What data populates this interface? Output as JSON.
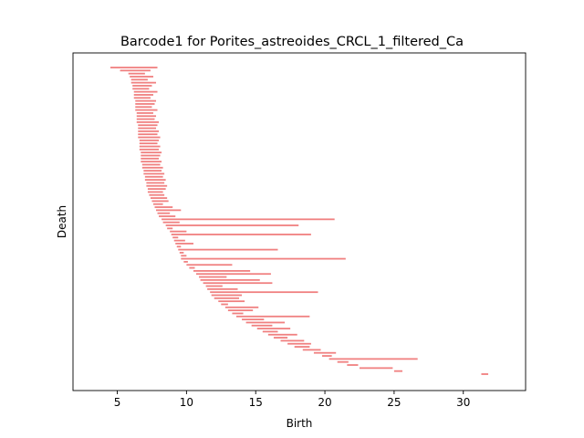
{
  "chart_data": {
    "type": "barcode",
    "title": "Barcode1 for Porites_astreoides_CRCL_1_filtered_Ca",
    "xlabel": "Birth",
    "ylabel": "Death",
    "xlim": [
      1.8,
      34.5
    ],
    "xticks": [
      5,
      10,
      15,
      20,
      25,
      30
    ],
    "yticks": [],
    "grid": false,
    "bar_color": "#f08080",
    "bars": [
      {
        "birth": 4.5,
        "death": 7.9
      },
      {
        "birth": 5.2,
        "death": 7.4
      },
      {
        "birth": 5.8,
        "death": 7.0
      },
      {
        "birth": 5.9,
        "death": 7.6
      },
      {
        "birth": 6.0,
        "death": 7.2
      },
      {
        "birth": 6.0,
        "death": 7.8
      },
      {
        "birth": 6.1,
        "death": 7.5
      },
      {
        "birth": 6.1,
        "death": 7.3
      },
      {
        "birth": 6.2,
        "death": 7.9
      },
      {
        "birth": 6.2,
        "death": 7.6
      },
      {
        "birth": 6.2,
        "death": 7.4
      },
      {
        "birth": 6.3,
        "death": 7.8
      },
      {
        "birth": 6.3,
        "death": 7.7
      },
      {
        "birth": 6.3,
        "death": 7.5
      },
      {
        "birth": 6.3,
        "death": 7.9
      },
      {
        "birth": 6.4,
        "death": 7.6
      },
      {
        "birth": 6.4,
        "death": 7.8
      },
      {
        "birth": 6.4,
        "death": 7.7
      },
      {
        "birth": 6.4,
        "death": 8.0
      },
      {
        "birth": 6.5,
        "death": 7.9
      },
      {
        "birth": 6.5,
        "death": 7.8
      },
      {
        "birth": 6.5,
        "death": 8.0
      },
      {
        "birth": 6.5,
        "death": 7.9
      },
      {
        "birth": 6.5,
        "death": 8.1
      },
      {
        "birth": 6.6,
        "death": 8.0
      },
      {
        "birth": 6.6,
        "death": 7.9
      },
      {
        "birth": 6.6,
        "death": 8.1
      },
      {
        "birth": 6.6,
        "death": 8.0
      },
      {
        "birth": 6.7,
        "death": 8.2
      },
      {
        "birth": 6.7,
        "death": 8.1
      },
      {
        "birth": 6.7,
        "death": 8.0
      },
      {
        "birth": 6.7,
        "death": 8.2
      },
      {
        "birth": 6.8,
        "death": 8.1
      },
      {
        "birth": 6.8,
        "death": 8.3
      },
      {
        "birth": 6.9,
        "death": 8.2
      },
      {
        "birth": 6.9,
        "death": 8.4
      },
      {
        "birth": 7.0,
        "death": 8.3
      },
      {
        "birth": 7.0,
        "death": 8.5
      },
      {
        "birth": 7.1,
        "death": 8.4
      },
      {
        "birth": 7.1,
        "death": 8.6
      },
      {
        "birth": 7.2,
        "death": 8.5
      },
      {
        "birth": 7.2,
        "death": 8.3
      },
      {
        "birth": 7.3,
        "death": 8.4
      },
      {
        "birth": 7.4,
        "death": 8.6
      },
      {
        "birth": 7.5,
        "death": 8.7
      },
      {
        "birth": 7.6,
        "death": 8.3
      },
      {
        "birth": 7.7,
        "death": 9.0
      },
      {
        "birth": 7.8,
        "death": 9.6
      },
      {
        "birth": 7.9,
        "death": 8.8
      },
      {
        "birth": 8.0,
        "death": 9.2
      },
      {
        "birth": 8.2,
        "death": 20.7
      },
      {
        "birth": 8.3,
        "death": 9.5
      },
      {
        "birth": 8.5,
        "death": 18.1
      },
      {
        "birth": 8.6,
        "death": 9.0
      },
      {
        "birth": 8.8,
        "death": 10.0
      },
      {
        "birth": 8.9,
        "death": 19.0
      },
      {
        "birth": 9.0,
        "death": 9.4
      },
      {
        "birth": 9.1,
        "death": 9.9
      },
      {
        "birth": 9.2,
        "death": 10.5
      },
      {
        "birth": 9.3,
        "death": 9.6
      },
      {
        "birth": 9.4,
        "death": 16.6
      },
      {
        "birth": 9.5,
        "death": 9.8
      },
      {
        "birth": 9.6,
        "death": 10.0
      },
      {
        "birth": 9.6,
        "death": 21.5
      },
      {
        "birth": 9.8,
        "death": 10.1
      },
      {
        "birth": 10.0,
        "death": 13.3
      },
      {
        "birth": 10.2,
        "death": 10.6
      },
      {
        "birth": 10.5,
        "death": 14.6
      },
      {
        "birth": 10.7,
        "death": 16.1
      },
      {
        "birth": 10.9,
        "death": 12.9
      },
      {
        "birth": 11.0,
        "death": 15.3
      },
      {
        "birth": 11.2,
        "death": 16.2
      },
      {
        "birth": 11.4,
        "death": 12.6
      },
      {
        "birth": 11.5,
        "death": 13.7
      },
      {
        "birth": 11.7,
        "death": 19.5
      },
      {
        "birth": 11.8,
        "death": 14.0
      },
      {
        "birth": 12.0,
        "death": 13.8
      },
      {
        "birth": 12.3,
        "death": 14.2
      },
      {
        "birth": 12.5,
        "death": 13.0
      },
      {
        "birth": 12.8,
        "death": 15.2
      },
      {
        "birth": 13.0,
        "death": 14.8
      },
      {
        "birth": 13.3,
        "death": 14.1
      },
      {
        "birth": 13.6,
        "death": 18.9
      },
      {
        "birth": 14.0,
        "death": 15.6
      },
      {
        "birth": 14.3,
        "death": 17.1
      },
      {
        "birth": 14.7,
        "death": 16.2
      },
      {
        "birth": 15.1,
        "death": 17.5
      },
      {
        "birth": 15.5,
        "death": 16.6
      },
      {
        "birth": 15.9,
        "death": 18.0
      },
      {
        "birth": 16.3,
        "death": 17.3
      },
      {
        "birth": 16.8,
        "death": 18.5
      },
      {
        "birth": 17.3,
        "death": 19.0
      },
      {
        "birth": 17.8,
        "death": 18.9
      },
      {
        "birth": 18.4,
        "death": 19.7
      },
      {
        "birth": 19.2,
        "death": 20.8
      },
      {
        "birth": 19.8,
        "death": 20.5
      },
      {
        "birth": 20.3,
        "death": 26.7
      },
      {
        "birth": 20.9,
        "death": 21.7
      },
      {
        "birth": 21.6,
        "death": 22.4
      },
      {
        "birth": 22.5,
        "death": 24.9
      },
      {
        "birth": 25.0,
        "death": 25.6
      },
      {
        "birth": 31.3,
        "death": 31.8
      }
    ]
  }
}
